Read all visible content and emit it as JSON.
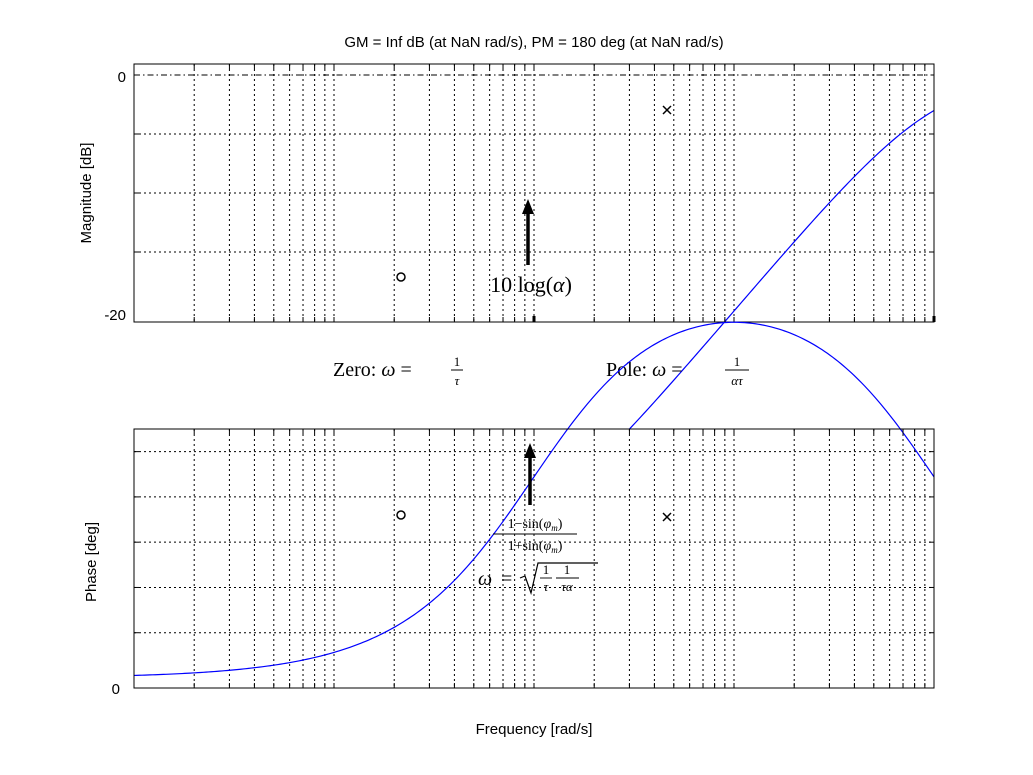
{
  "title": "GM = Inf dB (at NaN rad/s),   PM = 180 deg (at NaN rad/s)",
  "chart_data": {
    "type": "line",
    "title": "GM = Inf dB (at NaN rad/s),   PM = 180 deg (at NaN rad/s)",
    "xlabel": "Frequency [rad/s]",
    "x_scale": "log",
    "xlim": [
      0.01,
      100
    ],
    "grid": true,
    "color": "#0000ff",
    "alpha": 0.01,
    "tau": 1,
    "panels": [
      {
        "name": "magnitude",
        "ylabel": "Magnitude [dB]",
        "ylim": [
          -20,
          0
        ],
        "yticks": [
          "0",
          "-20"
        ],
        "markers": [
          {
            "symbol": "o",
            "label": "Zero",
            "x": 1,
            "y": -17
          },
          {
            "symbol": "x",
            "label": "Pole",
            "x": 100,
            "y": -3
          }
        ],
        "arrow": {
          "x": 10,
          "y": -10,
          "label": "10 log(α)"
        }
      },
      {
        "name": "phase",
        "ylabel": "Phase [deg]",
        "ylim": [
          0,
          55
        ],
        "yticks": [
          "0"
        ],
        "markers": [
          {
            "symbol": "o",
            "x": 1
          },
          {
            "symbol": "x",
            "x": 100
          }
        ],
        "arrow": {
          "x": 10,
          "y": 54.9,
          "label_top": "1−sin(φm)",
          "label_bottom": "1+sin(φm)",
          "label_omega": "ω = √(1/τ · 1/(τα))"
        }
      }
    ],
    "annotations": [
      "Zero: ω = 1/τ",
      "Pole: ω = 1/(ατ)"
    ]
  }
}
